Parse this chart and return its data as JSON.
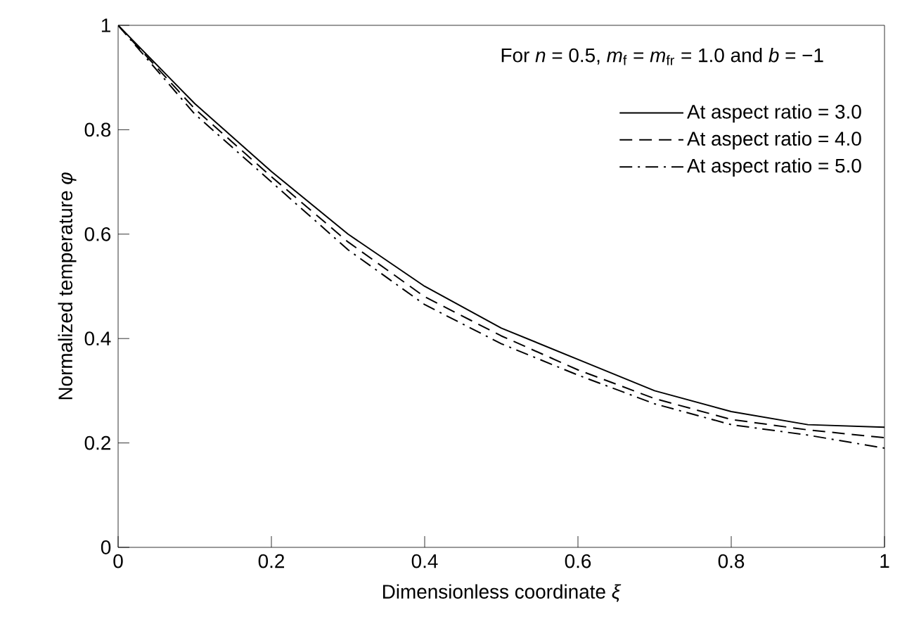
{
  "chart_data": {
    "type": "line",
    "xlabel": "Dimensionless coordinate *ξ*",
    "ylabel": "Normalized temperature *φ*",
    "annotations": [
      "For *n* = 0.5, *m*$_{f}$ = *m*$_{fr}$ = 1.0 and *b* = −1"
    ],
    "x": [
      0,
      0.1,
      0.2,
      0.3,
      0.4,
      0.5,
      0.6,
      0.7,
      0.8,
      0.9,
      1.0
    ],
    "series": [
      {
        "name": "At aspect ratio = 3.0",
        "color": "#000000",
        "line_style": "solid",
        "values": [
          1,
          0.85,
          0.72,
          0.6,
          0.5,
          0.42,
          0.36,
          0.3,
          0.26,
          0.235,
          0.23
        ]
      },
      {
        "name": "At aspect ratio = 4.0",
        "color": "#000000",
        "line_style": "dashed",
        "values": [
          1,
          0.84,
          0.71,
          0.585,
          0.48,
          0.405,
          0.34,
          0.285,
          0.245,
          0.225,
          0.21
        ]
      },
      {
        "name": "At aspect ratio = 5.0",
        "color": "#000000",
        "line_style": "dashdot",
        "values": [
          1,
          0.83,
          0.7,
          0.57,
          0.465,
          0.39,
          0.33,
          0.275,
          0.235,
          0.215,
          0.19
        ]
      }
    ],
    "xlim": [
      0,
      1
    ],
    "ylim": [
      0,
      1
    ],
    "xticks": [
      0,
      0.2,
      0.4,
      0.6,
      0.8,
      1
    ],
    "yticks": [
      0,
      0.2,
      0.4,
      0.6,
      0.8,
      1
    ],
    "grid": false,
    "legend": "top right",
    "marker": "none"
  }
}
